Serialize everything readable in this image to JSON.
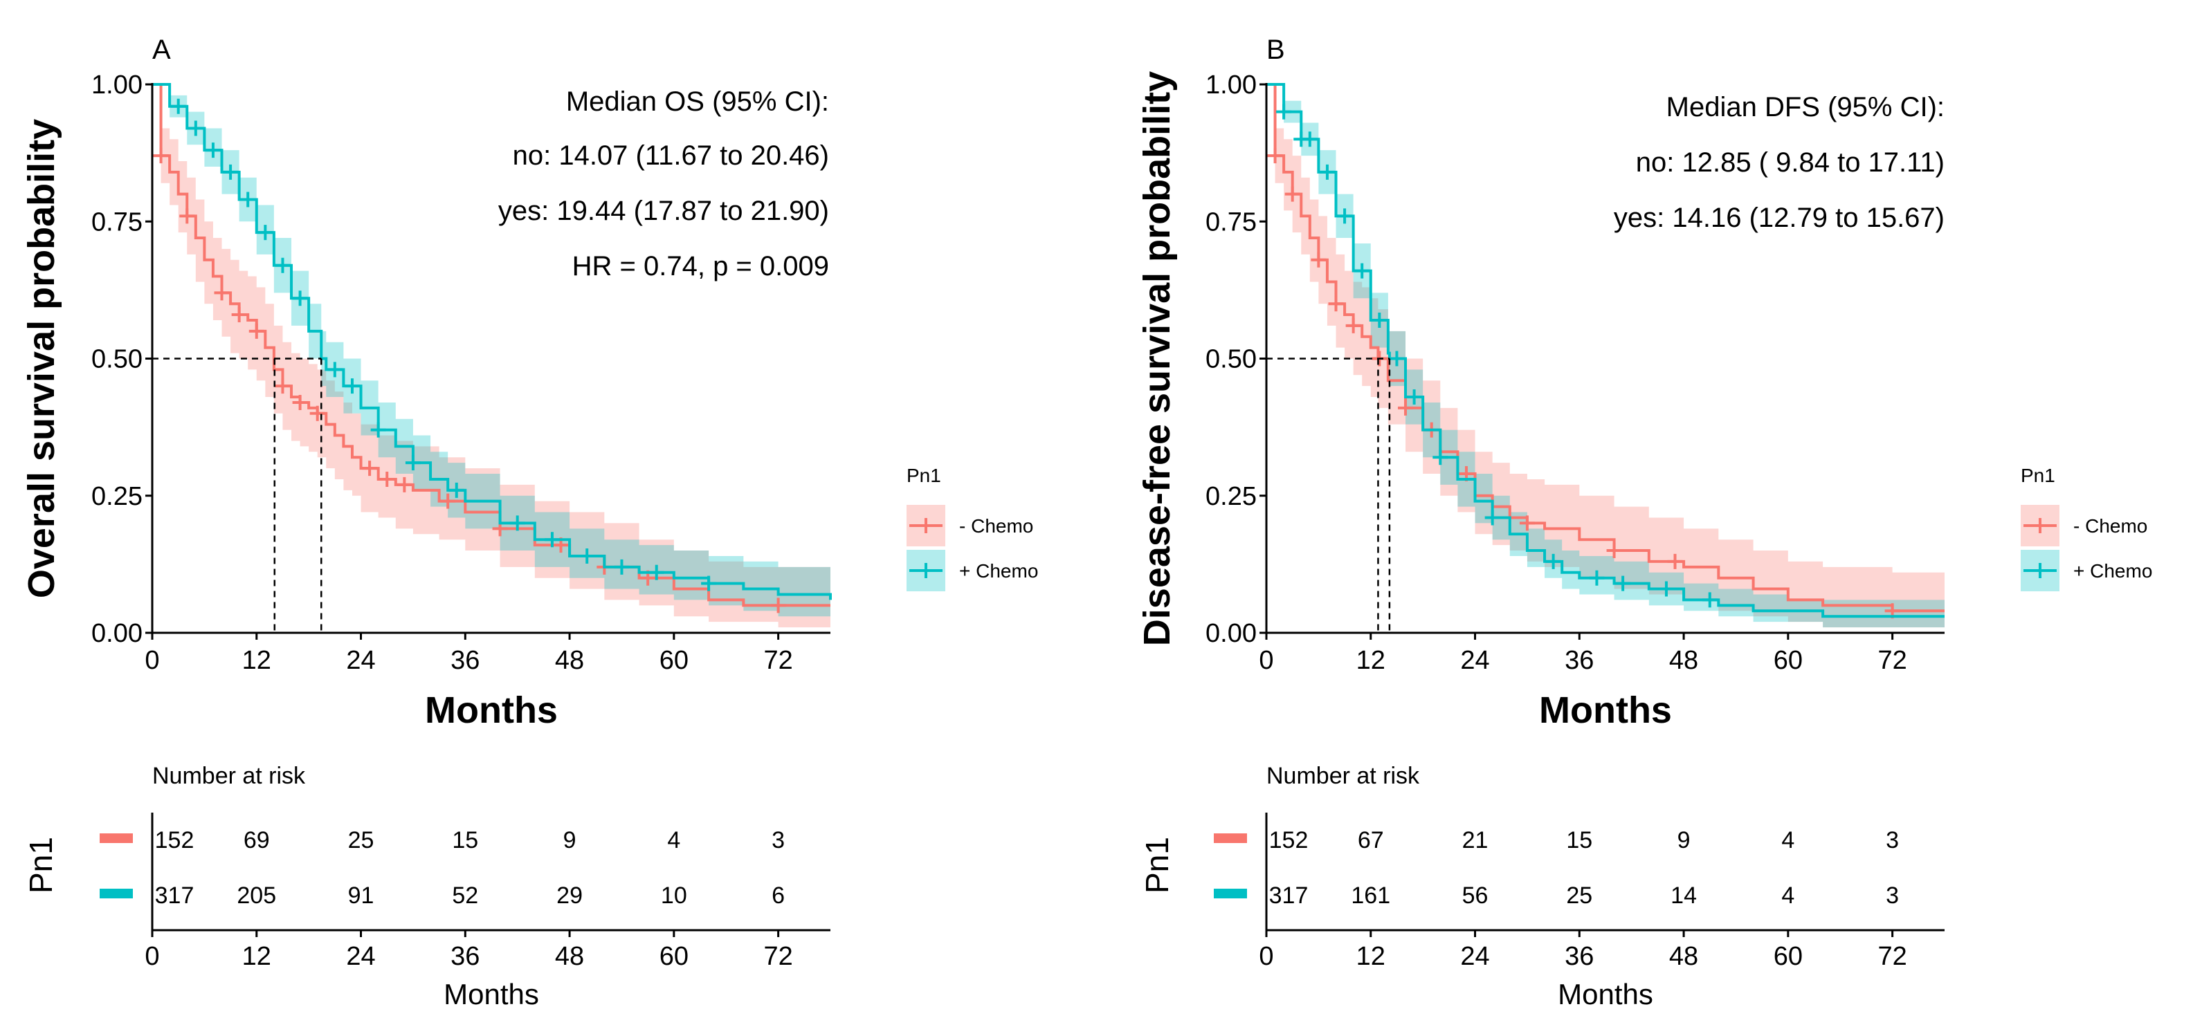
{
  "chart_data": [
    {
      "type": "line",
      "subtype": "kaplan-meier",
      "panel_label": "A",
      "xlabel": "Months",
      "ylabel": "Overall survival probability",
      "xlim": [
        0,
        78
      ],
      "ylim": [
        0,
        1
      ],
      "xticks": [
        "0",
        "12",
        "24",
        "36",
        "48",
        "60",
        "72"
      ],
      "yticks": [
        "0.00",
        "0.25",
        "0.50",
        "0.75",
        "1.00"
      ],
      "annotations": [
        "Median OS (95% CI):",
        "no: 14.07 (11.67 to 20.46)",
        "yes: 19.44 (17.87 to 21.90)",
        "HR = 0.74, p = 0.009"
      ],
      "medians": [
        14.07,
        19.44
      ],
      "legend": {
        "title": "Pn1",
        "position": "right"
      },
      "series": [
        {
          "name": "- Chemo",
          "color": "#F8766D",
          "x": [
            0,
            1,
            2,
            3,
            4,
            5,
            6,
            7,
            8,
            9,
            10,
            11,
            12,
            13,
            14,
            15,
            16,
            17,
            18,
            19,
            20,
            21,
            22,
            23,
            24,
            26,
            28,
            30,
            33,
            36,
            40,
            44,
            48,
            52,
            56,
            60,
            64,
            68,
            72,
            78
          ],
          "y": [
            1.0,
            0.87,
            0.84,
            0.8,
            0.76,
            0.72,
            0.68,
            0.65,
            0.62,
            0.6,
            0.58,
            0.57,
            0.55,
            0.52,
            0.48,
            0.45,
            0.43,
            0.42,
            0.41,
            0.4,
            0.38,
            0.36,
            0.34,
            0.32,
            0.3,
            0.28,
            0.27,
            0.26,
            0.24,
            0.22,
            0.19,
            0.16,
            0.14,
            0.12,
            0.1,
            0.08,
            0.06,
            0.05,
            0.05,
            0.05
          ],
          "lower": [
            1.0,
            0.82,
            0.78,
            0.73,
            0.69,
            0.64,
            0.6,
            0.57,
            0.54,
            0.51,
            0.5,
            0.48,
            0.46,
            0.43,
            0.4,
            0.37,
            0.35,
            0.34,
            0.33,
            0.32,
            0.3,
            0.28,
            0.26,
            0.25,
            0.22,
            0.21,
            0.19,
            0.18,
            0.17,
            0.15,
            0.12,
            0.1,
            0.08,
            0.06,
            0.05,
            0.03,
            0.02,
            0.02,
            0.01,
            0.01
          ],
          "upper": [
            1.0,
            0.92,
            0.9,
            0.86,
            0.83,
            0.79,
            0.75,
            0.72,
            0.7,
            0.68,
            0.66,
            0.65,
            0.63,
            0.6,
            0.56,
            0.53,
            0.51,
            0.5,
            0.49,
            0.48,
            0.46,
            0.44,
            0.42,
            0.4,
            0.38,
            0.36,
            0.35,
            0.34,
            0.32,
            0.3,
            0.27,
            0.24,
            0.22,
            0.2,
            0.17,
            0.15,
            0.13,
            0.12,
            0.12,
            0.12
          ],
          "censor_x": [
            1,
            4,
            8,
            10,
            12,
            15,
            17,
            19,
            25,
            27,
            29,
            34,
            40,
            47,
            52,
            57,
            72
          ],
          "at_risk": [
            "152",
            "69",
            "25",
            "15",
            "9",
            "4",
            "3"
          ]
        },
        {
          "name": "+ Chemo",
          "color": "#00BFC4",
          "x": [
            0,
            2,
            4,
            6,
            8,
            10,
            12,
            14,
            16,
            18,
            19.44,
            20,
            22,
            24,
            26,
            28,
            30,
            32,
            34,
            36,
            40,
            44,
            48,
            52,
            56,
            60,
            64,
            68,
            72,
            78
          ],
          "y": [
            1.0,
            0.96,
            0.92,
            0.88,
            0.84,
            0.79,
            0.73,
            0.67,
            0.61,
            0.55,
            0.5,
            0.48,
            0.45,
            0.41,
            0.37,
            0.34,
            0.31,
            0.28,
            0.26,
            0.24,
            0.2,
            0.17,
            0.14,
            0.12,
            0.11,
            0.1,
            0.09,
            0.08,
            0.07,
            0.06
          ],
          "lower": [
            1.0,
            0.94,
            0.89,
            0.85,
            0.8,
            0.75,
            0.69,
            0.62,
            0.56,
            0.5,
            0.45,
            0.43,
            0.4,
            0.36,
            0.32,
            0.29,
            0.26,
            0.23,
            0.21,
            0.19,
            0.15,
            0.12,
            0.1,
            0.08,
            0.07,
            0.06,
            0.05,
            0.04,
            0.03,
            0.03
          ],
          "upper": [
            1.0,
            0.98,
            0.95,
            0.92,
            0.88,
            0.83,
            0.78,
            0.72,
            0.66,
            0.6,
            0.55,
            0.53,
            0.5,
            0.46,
            0.42,
            0.39,
            0.36,
            0.33,
            0.31,
            0.29,
            0.25,
            0.22,
            0.19,
            0.17,
            0.16,
            0.15,
            0.14,
            0.13,
            0.12,
            0.11
          ],
          "censor_x": [
            3,
            5,
            7,
            9,
            11,
            13,
            15,
            17,
            21,
            23,
            26,
            30,
            35,
            42,
            46,
            50,
            54,
            58,
            64
          ],
          "at_risk": [
            "317",
            "205",
            "91",
            "52",
            "29",
            "10",
            "6"
          ]
        }
      ],
      "risk_table": {
        "title": "Number at risk",
        "group_label": "Pn1",
        "xlabel": "Months",
        "times": [
          0,
          12,
          24,
          36,
          48,
          60,
          72
        ]
      }
    },
    {
      "type": "line",
      "subtype": "kaplan-meier",
      "panel_label": "B",
      "xlabel": "Months",
      "ylabel": "Disease-free survival probability",
      "xlim": [
        0,
        78
      ],
      "ylim": [
        0,
        1
      ],
      "xticks": [
        "0",
        "12",
        "24",
        "36",
        "48",
        "60",
        "72"
      ],
      "yticks": [
        "0.00",
        "0.25",
        "0.50",
        "0.75",
        "1.00"
      ],
      "annotations": [
        "Median DFS (95% CI):",
        "no: 12.85 ( 9.84 to 17.11)",
        "yes: 14.16 (12.79 to 15.67)"
      ],
      "medians": [
        12.85,
        14.16
      ],
      "legend": {
        "title": "Pn1",
        "position": "right"
      },
      "series": [
        {
          "name": "- Chemo",
          "color": "#F8766D",
          "x": [
            0,
            1,
            2,
            3,
            4,
            5,
            6,
            7,
            8,
            9,
            10,
            11,
            12,
            12.85,
            14,
            16,
            18,
            20,
            22,
            24,
            26,
            28,
            30,
            32,
            36,
            40,
            44,
            48,
            52,
            56,
            60,
            64,
            72,
            78
          ],
          "y": [
            1.0,
            0.87,
            0.84,
            0.8,
            0.76,
            0.72,
            0.68,
            0.64,
            0.6,
            0.58,
            0.56,
            0.54,
            0.52,
            0.5,
            0.46,
            0.41,
            0.37,
            0.33,
            0.29,
            0.25,
            0.23,
            0.21,
            0.2,
            0.19,
            0.17,
            0.15,
            0.13,
            0.12,
            0.1,
            0.08,
            0.06,
            0.05,
            0.04,
            0.04
          ],
          "lower": [
            1.0,
            0.82,
            0.77,
            0.73,
            0.69,
            0.64,
            0.6,
            0.56,
            0.52,
            0.5,
            0.47,
            0.45,
            0.43,
            0.41,
            0.38,
            0.33,
            0.29,
            0.25,
            0.22,
            0.18,
            0.16,
            0.15,
            0.13,
            0.12,
            0.1,
            0.08,
            0.07,
            0.06,
            0.04,
            0.03,
            0.02,
            0.01,
            0.01,
            0.01
          ],
          "upper": [
            1.0,
            0.92,
            0.9,
            0.87,
            0.83,
            0.79,
            0.76,
            0.72,
            0.69,
            0.66,
            0.64,
            0.63,
            0.61,
            0.59,
            0.55,
            0.5,
            0.46,
            0.41,
            0.37,
            0.33,
            0.31,
            0.29,
            0.28,
            0.27,
            0.25,
            0.23,
            0.21,
            0.19,
            0.17,
            0.15,
            0.13,
            0.12,
            0.11,
            0.11
          ],
          "censor_x": [
            1,
            3,
            6,
            8,
            10,
            13,
            16,
            19,
            23,
            30,
            40,
            47,
            72
          ],
          "at_risk": [
            "152",
            "67",
            "21",
            "15",
            "9",
            "4",
            "3"
          ]
        },
        {
          "name": "+ Chemo",
          "color": "#00BFC4",
          "x": [
            0,
            2,
            4,
            6,
            8,
            10,
            12,
            14,
            14.16,
            16,
            18,
            20,
            22,
            24,
            26,
            28,
            30,
            32,
            34,
            36,
            40,
            44,
            48,
            52,
            56,
            60,
            64,
            72,
            78
          ],
          "y": [
            1.0,
            0.95,
            0.9,
            0.84,
            0.76,
            0.66,
            0.57,
            0.51,
            0.5,
            0.43,
            0.37,
            0.32,
            0.28,
            0.24,
            0.21,
            0.18,
            0.15,
            0.13,
            0.11,
            0.1,
            0.09,
            0.08,
            0.06,
            0.05,
            0.04,
            0.04,
            0.03,
            0.03,
            0.03
          ],
          "lower": [
            1.0,
            0.93,
            0.87,
            0.8,
            0.72,
            0.61,
            0.52,
            0.46,
            0.45,
            0.38,
            0.32,
            0.27,
            0.23,
            0.2,
            0.17,
            0.14,
            0.12,
            0.1,
            0.08,
            0.07,
            0.06,
            0.05,
            0.04,
            0.03,
            0.02,
            0.02,
            0.01,
            0.01,
            0.01
          ],
          "upper": [
            1.0,
            0.97,
            0.93,
            0.88,
            0.8,
            0.71,
            0.62,
            0.56,
            0.55,
            0.48,
            0.42,
            0.37,
            0.33,
            0.29,
            0.25,
            0.22,
            0.19,
            0.17,
            0.15,
            0.14,
            0.13,
            0.11,
            0.09,
            0.08,
            0.07,
            0.06,
            0.06,
            0.06,
            0.06
          ],
          "censor_x": [
            2,
            4,
            5,
            7,
            9,
            11,
            13,
            15,
            17,
            20,
            26,
            33,
            38,
            41,
            46,
            51
          ],
          "at_risk": [
            "317",
            "161",
            "56",
            "25",
            "14",
            "4",
            "3"
          ]
        }
      ],
      "risk_table": {
        "title": "Number at risk",
        "group_label": "Pn1",
        "xlabel": "Months",
        "times": [
          0,
          12,
          24,
          36,
          48,
          60,
          72
        ]
      }
    }
  ]
}
